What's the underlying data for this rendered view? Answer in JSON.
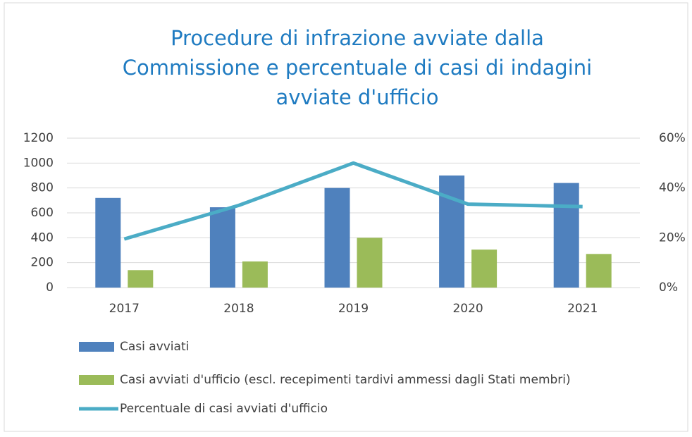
{
  "chart_data": {
    "type": "bar-line",
    "title": [
      "Procedure di infrazione avviate dalla",
      "Commissione e percentuale di casi di indagini",
      "avviate d'ufficio"
    ],
    "categories": [
      "2017",
      "2018",
      "2019",
      "2020",
      "2021"
    ],
    "series": [
      {
        "name": "Casi avviati",
        "color": "#4f81bd",
        "type": "bar",
        "values": [
          720,
          645,
          800,
          900,
          840
        ]
      },
      {
        "name": "Casi avviati d'ufficio (escl. recepimenti tardivi ammessi dagli Stati membri)",
        "color": "#9bbb59",
        "type": "bar",
        "values": [
          140,
          210,
          400,
          305,
          270
        ]
      },
      {
        "name": "Percentuale di casi avviati d'ufficio",
        "color": "#4bacc6",
        "type": "line",
        "axis": "y2",
        "values": [
          19.5,
          33,
          50,
          33.5,
          32.5
        ]
      }
    ],
    "ylim": [
      0,
      1200
    ],
    "yticks": [
      0,
      200,
      400,
      600,
      800,
      1000,
      1200
    ],
    "y2lim": [
      0,
      60
    ],
    "y2ticks": [
      {
        "value": 0,
        "label": "0%"
      },
      {
        "value": 20,
        "label": "20%"
      },
      {
        "value": 40,
        "label": "40%"
      },
      {
        "value": 60,
        "label": "60%"
      }
    ],
    "grid": true,
    "legend": "bottom"
  }
}
